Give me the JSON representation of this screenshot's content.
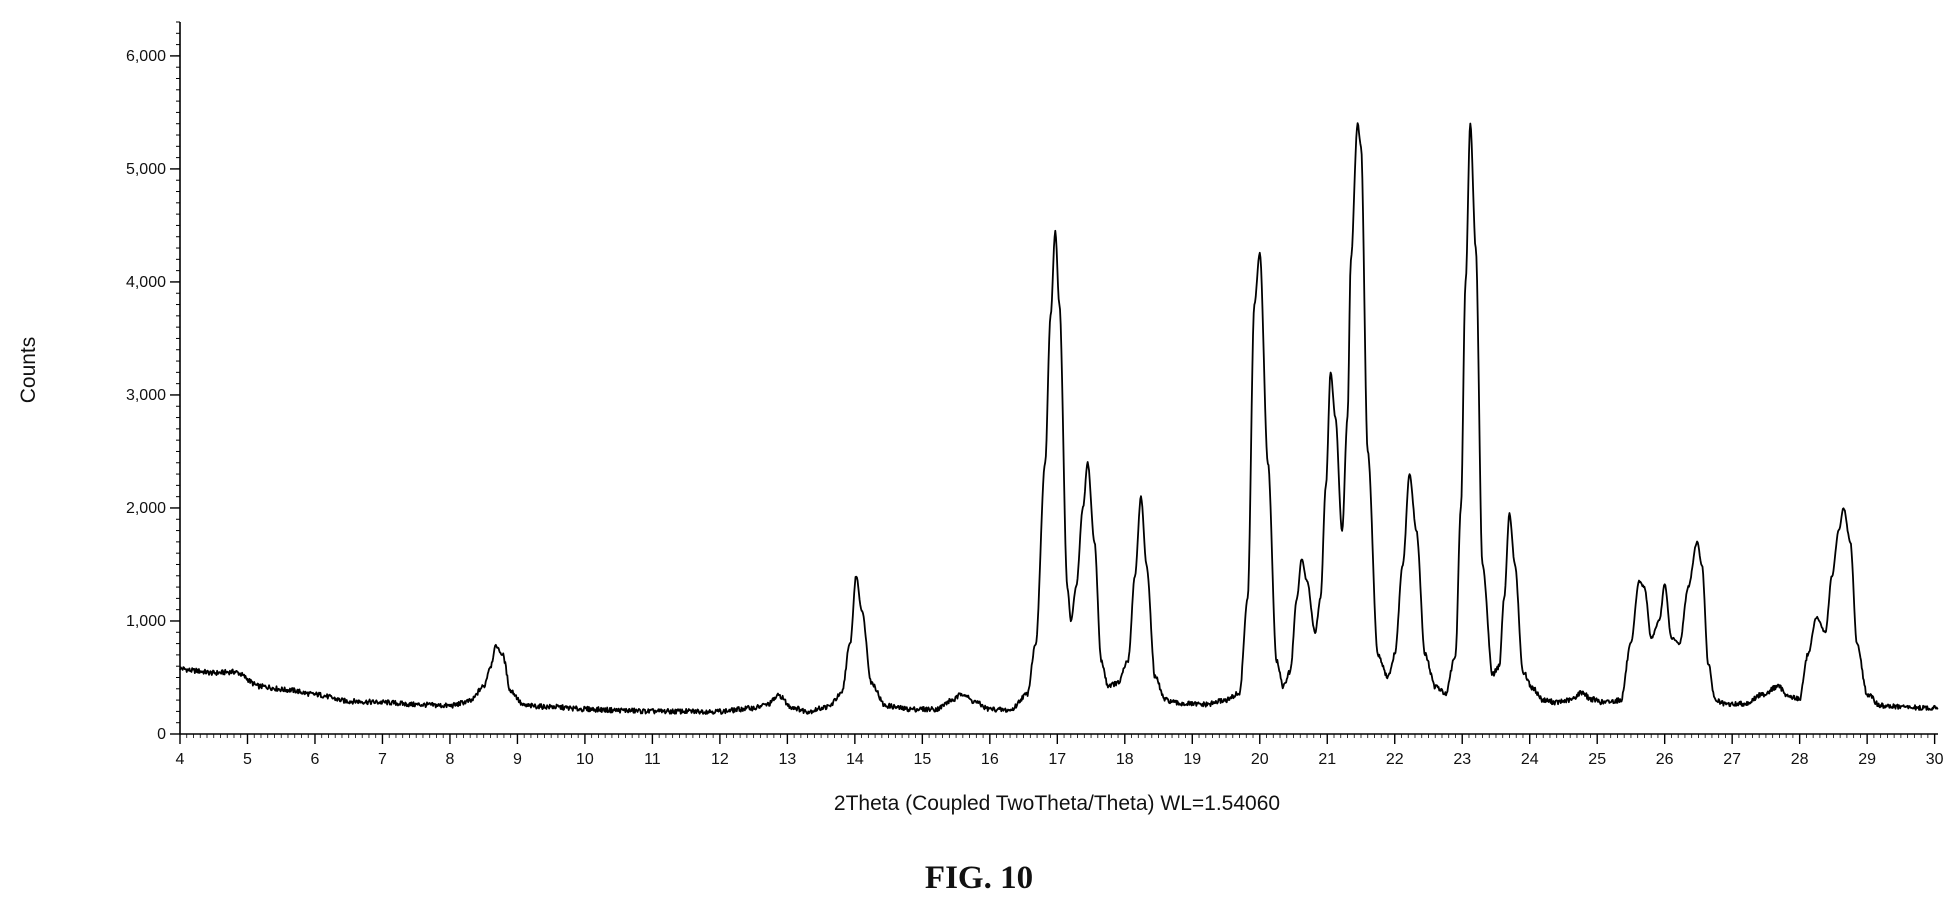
{
  "chart_data": {
    "type": "line",
    "title": "",
    "xlabel": "2Theta (Coupled TwoTheta/Theta) WL=1.54060",
    "ylabel": "Counts",
    "xlim": [
      4,
      30.05
    ],
    "ylim": [
      0,
      6300
    ],
    "grid": false,
    "legend": "none",
    "x_ticks": [
      4,
      5,
      6,
      7,
      8,
      9,
      10,
      11,
      12,
      13,
      14,
      15,
      16,
      17,
      18,
      19,
      20,
      21,
      22,
      23,
      24,
      25,
      26,
      27,
      28,
      29,
      30
    ],
    "x_tick_labels": [
      "4",
      "5",
      "6",
      "7",
      "8",
      "9",
      "10",
      "11",
      "12",
      "13",
      "14",
      "15",
      "16",
      "17",
      "18",
      "19",
      "20",
      "21",
      "22",
      "23",
      "24",
      "25",
      "26",
      "27",
      "28",
      "29",
      "30"
    ],
    "y_ticks": [
      0,
      1000,
      2000,
      3000,
      4000,
      5000,
      6000
    ],
    "y_tick_labels": [
      "0",
      "1,000",
      "2,000",
      "3,000",
      "4,000",
      "5,000",
      "6,000"
    ],
    "series": [
      {
        "x": [
          4.0,
          4.2,
          4.5,
          4.8,
          5.2,
          5.6,
          6.0,
          6.5,
          7.0,
          7.5,
          8.0,
          8.3,
          8.5,
          8.6,
          8.68,
          8.78,
          8.9,
          9.1,
          9.5,
          10.0,
          10.5,
          11.0,
          11.5,
          12.0,
          12.5,
          12.7,
          12.88,
          13.05,
          13.3,
          13.6,
          13.8,
          13.93,
          14.02,
          14.1,
          14.25,
          14.45,
          14.8,
          15.2,
          15.45,
          15.6,
          15.75,
          16.0,
          16.3,
          16.55,
          16.68,
          16.82,
          16.9,
          16.97,
          17.03,
          17.15,
          17.2,
          17.28,
          17.38,
          17.45,
          17.55,
          17.65,
          17.75,
          17.9,
          18.05,
          18.15,
          18.24,
          18.32,
          18.45,
          18.6,
          18.8,
          19.2,
          19.5,
          19.7,
          19.82,
          19.92,
          20.0,
          20.12,
          20.25,
          20.35,
          20.45,
          20.55,
          20.62,
          20.7,
          20.82,
          20.9,
          20.98,
          21.05,
          21.12,
          21.22,
          21.3,
          21.35,
          21.45,
          21.5,
          21.6,
          21.75,
          21.9,
          22.0,
          22.12,
          22.22,
          22.32,
          22.45,
          22.6,
          22.75,
          22.9,
          22.98,
          23.05,
          23.12,
          23.2,
          23.3,
          23.45,
          23.55,
          23.62,
          23.7,
          23.78,
          23.9,
          24.05,
          24.2,
          24.4,
          24.6,
          24.78,
          24.9,
          25.1,
          25.35,
          25.5,
          25.62,
          25.7,
          25.8,
          25.92,
          26.0,
          26.1,
          26.22,
          26.35,
          26.48,
          26.55,
          26.65,
          26.75,
          26.9,
          27.2,
          27.45,
          27.68,
          27.85,
          28.0,
          28.12,
          28.25,
          28.38,
          28.48,
          28.58,
          28.65,
          28.75,
          28.85,
          29.0,
          29.2,
          29.5,
          29.8,
          30.0,
          30.05
        ],
        "values": [
          580,
          560,
          540,
          550,
          420,
          390,
          350,
          290,
          280,
          260,
          250,
          290,
          420,
          600,
          780,
          700,
          380,
          250,
          240,
          220,
          210,
          200,
          200,
          200,
          230,
          260,
          340,
          240,
          200,
          240,
          350,
          800,
          1400,
          1100,
          450,
          250,
          220,
          220,
          300,
          360,
          290,
          220,
          210,
          350,
          800,
          2400,
          3700,
          4450,
          3800,
          1300,
          1000,
          1300,
          2000,
          2400,
          1700,
          650,
          430,
          450,
          650,
          1400,
          2100,
          1500,
          500,
          300,
          270,
          260,
          300,
          360,
          1200,
          3800,
          4250,
          2400,
          650,
          420,
          550,
          1200,
          1550,
          1350,
          900,
          1200,
          2200,
          3200,
          2800,
          1800,
          2800,
          4200,
          5400,
          5200,
          2500,
          700,
          500,
          700,
          1500,
          2300,
          1800,
          700,
          420,
          360,
          700,
          2000,
          4000,
          5400,
          4300,
          1500,
          530,
          600,
          1200,
          1950,
          1500,
          550,
          400,
          300,
          280,
          300,
          370,
          310,
          280,
          300,
          800,
          1350,
          1300,
          850,
          1000,
          1320,
          850,
          800,
          1300,
          1700,
          1500,
          600,
          300,
          260,
          270,
          350,
          420,
          330,
          310,
          700,
          1030,
          900,
          1400,
          1800,
          2000,
          1700,
          800,
          350,
          250,
          240,
          230,
          230,
          230
        ]
      }
    ]
  },
  "caption": "FIG. 10"
}
